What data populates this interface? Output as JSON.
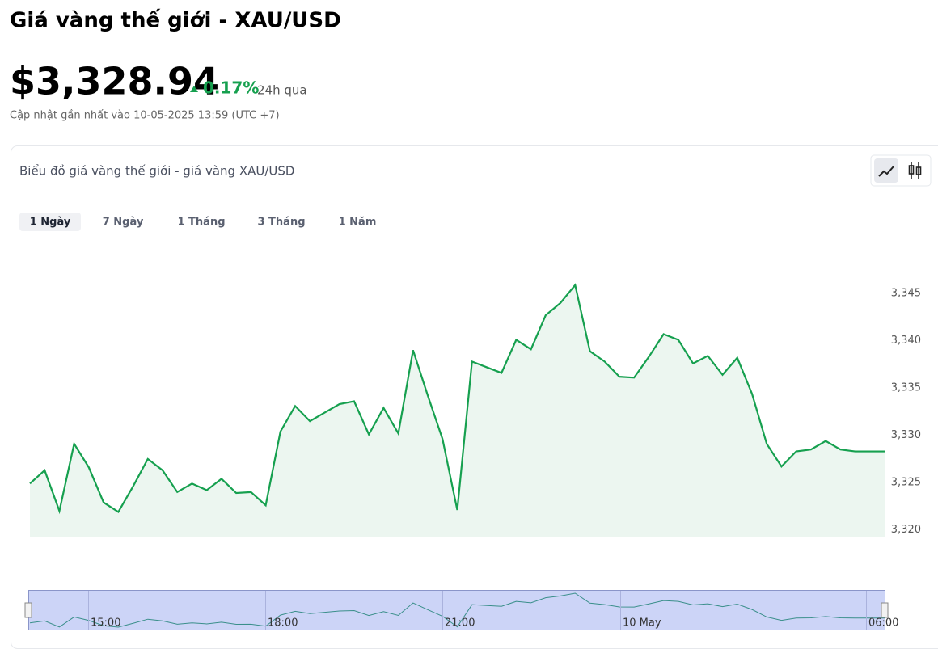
{
  "title": "Giá vàng thế giới - XAU/USD",
  "price": "$3,328.94",
  "change": "0.17%",
  "change_period": "24h qua",
  "updated": "Cập nhật gần nhất vào 10-05-2025 13:59 (UTC +7)",
  "tabs": [
    "1 Ngày",
    "7 Ngày",
    "1 Tháng",
    "3 Tháng",
    "1 Năm"
  ],
  "navigator_labels": [
    "15:00",
    "18:00",
    "21:00",
    "10 May",
    "06:00"
  ],
  "chart_data": {
    "type": "line",
    "title": "Biểu đồ giá vàng thế giới - giá vàng XAU/USD",
    "color": "#16a04f",
    "fill": "#ecf6f0",
    "values": [
      3324.9,
      3326.3,
      3322.0,
      3329.1,
      3326.6,
      3322.9,
      3321.9,
      3324.6,
      3327.5,
      3326.3,
      3324.0,
      3324.9,
      3324.2,
      3325.4,
      3323.9,
      3324.0,
      3322.6,
      3330.4,
      3333.1,
      3331.5,
      3332.4,
      3333.3,
      3333.6,
      3330.1,
      3332.9,
      3330.2,
      3339.0,
      3334.2,
      3329.6,
      3322.1,
      3337.8,
      3337.2,
      3336.6,
      3340.1,
      3339.1,
      3342.7,
      3344.0,
      3345.9,
      3338.9,
      3337.8,
      3336.2,
      3336.1,
      3338.3,
      3340.7,
      3340.1,
      3337.6,
      3338.4,
      3336.4,
      3338.2,
      3334.4,
      3329.1,
      3326.7,
      3328.3,
      3328.5,
      3329.4,
      3328.5,
      3328.3,
      3328.3,
      3328.3
    ],
    "ylim": [
      3319.2,
      3350.4
    ],
    "yticks": [
      {
        "value": 3320,
        "label": "3,320"
      },
      {
        "value": 3325,
        "label": "3,325"
      },
      {
        "value": 3330,
        "label": "3,330"
      },
      {
        "value": 3335,
        "label": "3,335"
      },
      {
        "value": 3340,
        "label": "3,340"
      },
      {
        "value": 3345,
        "label": "3,345"
      }
    ]
  }
}
